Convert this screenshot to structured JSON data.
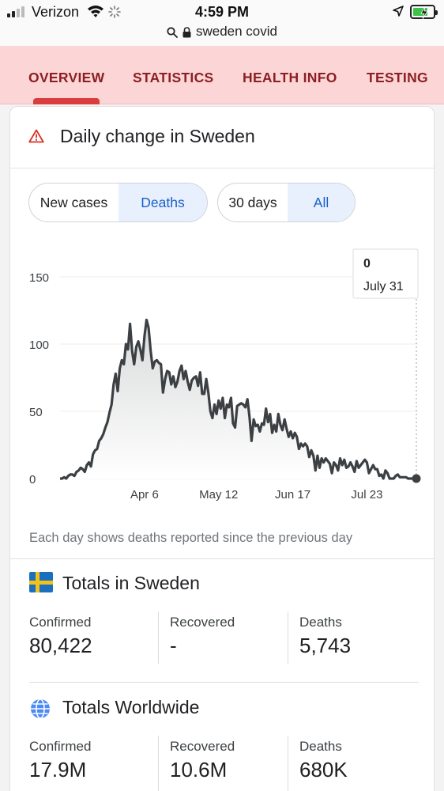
{
  "status_bar": {
    "carrier": "Verizon",
    "time": "4:59 PM",
    "url": "sweden covid"
  },
  "tabs": [
    {
      "label": "OVERVIEW",
      "active": true
    },
    {
      "label": "STATISTICS",
      "active": false
    },
    {
      "label": "HEALTH INFO",
      "active": false
    },
    {
      "label": "TESTING",
      "active": false
    }
  ],
  "card": {
    "title": "Daily change in Sweden",
    "metric_toggle": [
      "New cases",
      "Deaths"
    ],
    "metric_selected": "Deaths",
    "range_toggle": [
      "30 days",
      "All"
    ],
    "range_selected": "All",
    "footnote": "Each day shows deaths reported since the previous day"
  },
  "chart_data": {
    "type": "area",
    "xlabel": "",
    "ylabel": "",
    "y_ticks": [
      "0",
      "50",
      "100",
      "150"
    ],
    "ylim": [
      0,
      150
    ],
    "x_ticks": [
      "Apr 6",
      "May 12",
      "Jun 17",
      "Jul 23"
    ],
    "tooltip": {
      "value": "0",
      "date": "July 31"
    },
    "colors": {
      "line": "#3c4043",
      "fill": "#d9dadb"
    },
    "series": [
      {
        "values": [
          0,
          0,
          1,
          0,
          2,
          3,
          3,
          2,
          5,
          6,
          8,
          7,
          5,
          10,
          12,
          9,
          18,
          21,
          22,
          28,
          30,
          33,
          38,
          42,
          49,
          55,
          70,
          78,
          65,
          82,
          88,
          85,
          100,
          96,
          115,
          95,
          85,
          98,
          102,
          96,
          88,
          106,
          118,
          112,
          95,
          82,
          87,
          88,
          86,
          85,
          64,
          74,
          80,
          79,
          70,
          76,
          68,
          72,
          80,
          84,
          74,
          80,
          72,
          66,
          73,
          75,
          76,
          69,
          79,
          63,
          63,
          74,
          64,
          50,
          45,
          55,
          48,
          58,
          52,
          60,
          45,
          55,
          53,
          60,
          41,
          38,
          54,
          55,
          56,
          55,
          53,
          59,
          46,
          28,
          44,
          39,
          40,
          35,
          41,
          40,
          52,
          42,
          48,
          34,
          40,
          35,
          48,
          40,
          36,
          44,
          37,
          31,
          35,
          30,
          34,
          31,
          22,
          26,
          24,
          26,
          24,
          16,
          21,
          17,
          6,
          17,
          8,
          15,
          12,
          15,
          13,
          11,
          4,
          12,
          10,
          6,
          15,
          10,
          14,
          8,
          9,
          12,
          9,
          5,
          13,
          8,
          10,
          12,
          14,
          12,
          4,
          7,
          10,
          7,
          7,
          2,
          3,
          0,
          6,
          4,
          0,
          0,
          0,
          2,
          3,
          1,
          1,
          1,
          1,
          0,
          0,
          0,
          0,
          0
        ]
      }
    ]
  },
  "totals_sweden": {
    "title": "Totals in Sweden",
    "stats": [
      {
        "label": "Confirmed",
        "value": "80,422"
      },
      {
        "label": "Recovered",
        "value": "-"
      },
      {
        "label": "Deaths",
        "value": "5,743"
      }
    ]
  },
  "totals_world": {
    "title": "Totals Worldwide",
    "stats": [
      {
        "label": "Confirmed",
        "value": "17.9M"
      },
      {
        "label": "Recovered",
        "value": "10.6M"
      },
      {
        "label": "Deaths",
        "value": "680K"
      }
    ]
  }
}
